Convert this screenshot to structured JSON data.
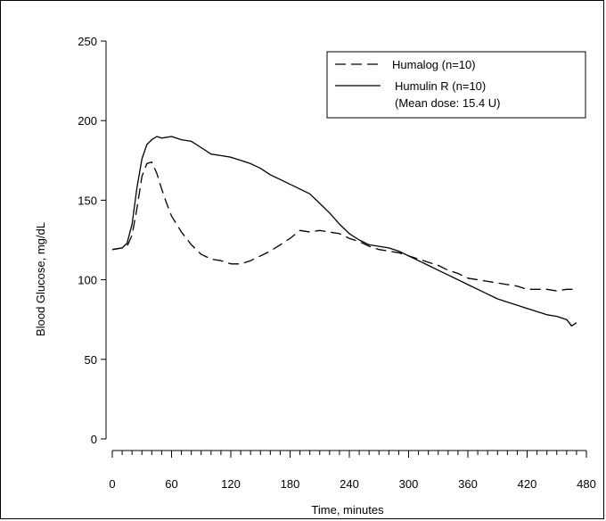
{
  "chart_data": {
    "type": "line",
    "title": "",
    "xlabel": "Time, minutes",
    "ylabel": "Blood Glucose, mg/dL",
    "xlim": [
      0,
      480
    ],
    "ylim": [
      0,
      250
    ],
    "x_ticks": [
      0,
      60,
      120,
      180,
      240,
      300,
      360,
      420,
      480
    ],
    "y_ticks": [
      0,
      50,
      100,
      150,
      200,
      250
    ],
    "x_minor_step": 10,
    "grid": false,
    "legend_position": "top-right",
    "legend": {
      "lines": [
        "Humalog (n=10)",
        "Humulin R (n=10)",
        "(Mean dose: 15.4 U)"
      ]
    },
    "series": [
      {
        "name": "Humalog (n=10)",
        "style": "dashed",
        "color": "#000000",
        "x": [
          0,
          10,
          15,
          20,
          25,
          30,
          35,
          40,
          45,
          50,
          55,
          60,
          70,
          80,
          90,
          100,
          110,
          120,
          130,
          140,
          150,
          160,
          170,
          180,
          190,
          200,
          210,
          220,
          230,
          240,
          250,
          260,
          270,
          280,
          290,
          300,
          310,
          320,
          330,
          340,
          350,
          360,
          370,
          380,
          390,
          400,
          410,
          420,
          430,
          440,
          450,
          460,
          470
        ],
        "y": [
          119,
          120,
          121,
          128,
          145,
          165,
          173,
          174,
          167,
          157,
          148,
          140,
          130,
          122,
          116,
          113,
          112,
          110,
          110,
          112,
          115,
          118,
          122,
          126,
          131,
          130,
          131,
          130,
          129,
          126,
          124,
          121,
          119,
          118,
          117,
          115,
          113,
          111,
          109,
          106,
          104,
          101,
          100,
          99,
          98,
          97,
          96,
          94,
          94,
          94,
          93,
          94,
          94
        ]
      },
      {
        "name": "Humulin R (n=10)",
        "style": "solid",
        "color": "#000000",
        "x": [
          0,
          10,
          15,
          20,
          25,
          30,
          35,
          40,
          45,
          50,
          60,
          70,
          80,
          90,
          100,
          110,
          120,
          130,
          140,
          150,
          160,
          170,
          180,
          190,
          200,
          210,
          220,
          230,
          240,
          250,
          260,
          270,
          280,
          290,
          300,
          310,
          320,
          330,
          340,
          350,
          360,
          370,
          380,
          390,
          400,
          410,
          420,
          430,
          440,
          450,
          460,
          465,
          470
        ],
        "y": [
          119,
          120,
          123,
          135,
          158,
          176,
          185,
          188,
          190,
          189,
          190,
          188,
          187,
          183,
          179,
          178,
          177,
          175,
          173,
          170,
          166,
          163,
          160,
          157,
          154,
          148,
          142,
          135,
          129,
          125,
          122,
          121,
          120,
          118,
          115,
          112,
          109,
          106,
          103,
          100,
          97,
          94,
          91,
          88,
          86,
          84,
          82,
          80,
          78,
          77,
          75,
          71,
          73
        ]
      }
    ]
  }
}
